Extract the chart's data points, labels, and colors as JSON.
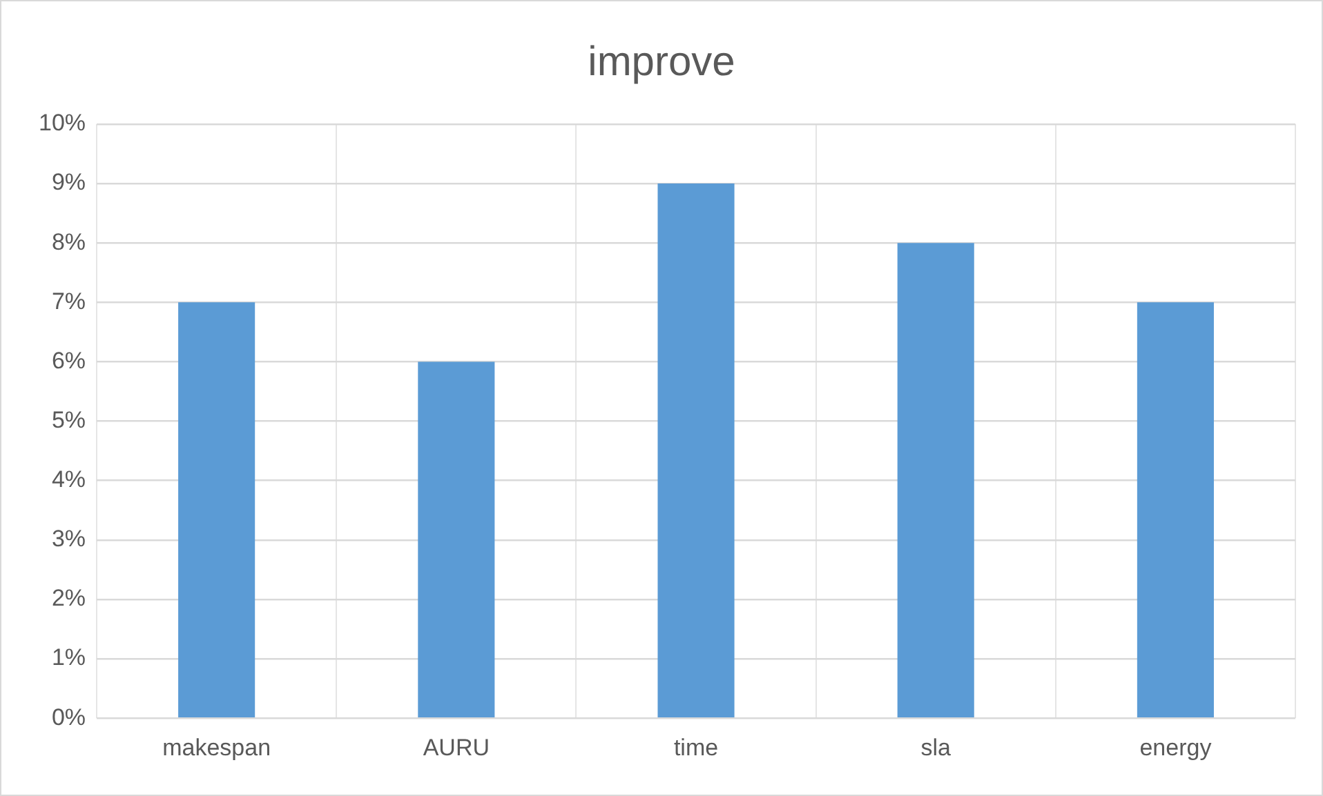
{
  "chart_data": {
    "type": "bar",
    "title": "improve",
    "categories": [
      "makespan",
      "AURU",
      "time",
      "sla",
      "energy"
    ],
    "values": [
      7,
      6,
      9,
      8,
      7
    ],
    "color": "#5b9bd5",
    "ylim": [
      0,
      10
    ],
    "yticks": [
      {
        "value": 0,
        "label": "0%"
      },
      {
        "value": 1,
        "label": "1%"
      },
      {
        "value": 2,
        "label": "2%"
      },
      {
        "value": 3,
        "label": "3%"
      },
      {
        "value": 4,
        "label": "4%"
      },
      {
        "value": 5,
        "label": "5%"
      },
      {
        "value": 6,
        "label": "6%"
      },
      {
        "value": 7,
        "label": "7%"
      },
      {
        "value": 8,
        "label": "8%"
      },
      {
        "value": 9,
        "label": "9%"
      },
      {
        "value": 10,
        "label": "10%"
      }
    ],
    "grid": true
  }
}
